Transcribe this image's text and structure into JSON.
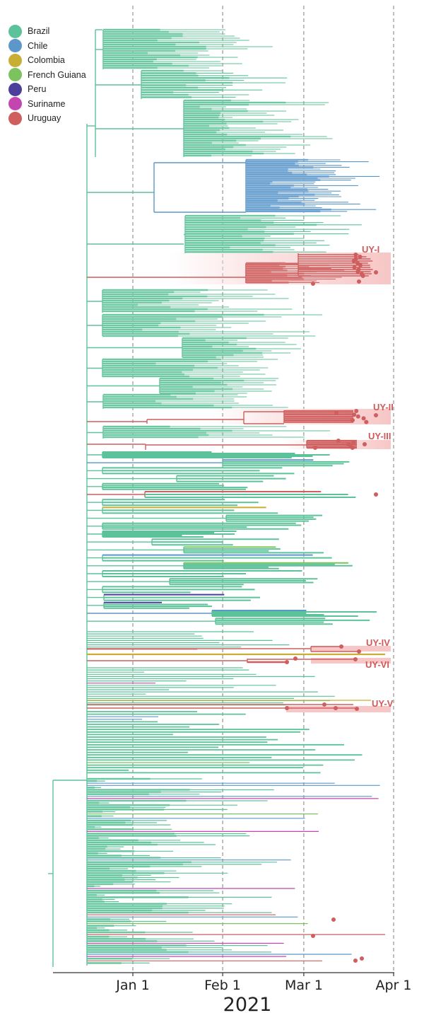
{
  "legend": {
    "items": [
      {
        "label": "Brazil",
        "country": "BR",
        "color": "#5cc29a"
      },
      {
        "label": "Chile",
        "country": "CL",
        "color": "#5b97c9"
      },
      {
        "label": "Colombia",
        "country": "CO",
        "color": "#c9ae35"
      },
      {
        "label": "French Guiana",
        "country": "GF",
        "color": "#7cc35f"
      },
      {
        "label": "Peru",
        "country": "PE",
        "color": "#4c3f9c"
      },
      {
        "label": "Suriname",
        "country": "SR",
        "color": "#c445b0"
      },
      {
        "label": "Uruguay",
        "country": "UY",
        "color": "#cf5e5e"
      }
    ]
  },
  "axis": {
    "title": "2021",
    "ticks": [
      {
        "label": "Jan 1",
        "day": 0
      },
      {
        "label": "Feb 1",
        "day": 31
      },
      {
        "label": "Mar 1",
        "day": 59
      },
      {
        "label": "Apr 1",
        "day": 90
      }
    ],
    "range_days": [
      -28,
      91
    ]
  },
  "uruguay_clades": [
    {
      "label": "UY-I"
    },
    {
      "label": "UY-II"
    },
    {
      "label": "UY-III"
    },
    {
      "label": "UY-IV"
    },
    {
      "label": "UY-VI"
    },
    {
      "label": "UY-V"
    }
  ],
  "highlight_color": "#f7c6c6",
  "clade_label_color": "#d05a5a"
}
